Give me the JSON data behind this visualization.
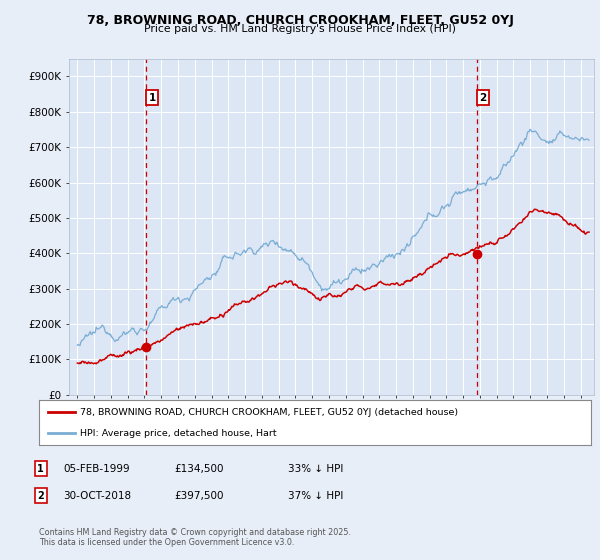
{
  "title_line1": "78, BROWNING ROAD, CHURCH CROOKHAM, FLEET, GU52 0YJ",
  "title_line2": "Price paid vs. HM Land Registry's House Price Index (HPI)",
  "bg_color": "#e8eef8",
  "plot_bg_color": "#dce6f5",
  "red_color": "#cc0000",
  "blue_color": "#7aadd4",
  "sale1_date": 1999.09,
  "sale1_price": 134500,
  "sale1_label": "1",
  "sale2_date": 2018.83,
  "sale2_price": 397500,
  "sale2_label": "2",
  "ylim_min": 0,
  "ylim_max": 950000,
  "xlim_min": 1994.5,
  "xlim_max": 2025.8,
  "legend_label_red": "78, BROWNING ROAD, CHURCH CROOKHAM, FLEET, GU52 0YJ (detached house)",
  "legend_label_blue": "HPI: Average price, detached house, Hart",
  "footnote": "Contains HM Land Registry data © Crown copyright and database right 2025.\nThis data is licensed under the Open Government Licence v3.0.",
  "table_entries": [
    {
      "label": "1",
      "date": "05-FEB-1999",
      "price": "£134,500",
      "note": "33% ↓ HPI"
    },
    {
      "label": "2",
      "date": "30-OCT-2018",
      "price": "£397,500",
      "note": "37% ↓ HPI"
    }
  ],
  "yticks": [
    0,
    100000,
    200000,
    300000,
    400000,
    500000,
    600000,
    700000,
    800000,
    900000
  ],
  "ytick_labels": [
    "£0",
    "£100K",
    "£200K",
    "£300K",
    "£400K",
    "£500K",
    "£600K",
    "£700K",
    "£800K",
    "£900K"
  ]
}
